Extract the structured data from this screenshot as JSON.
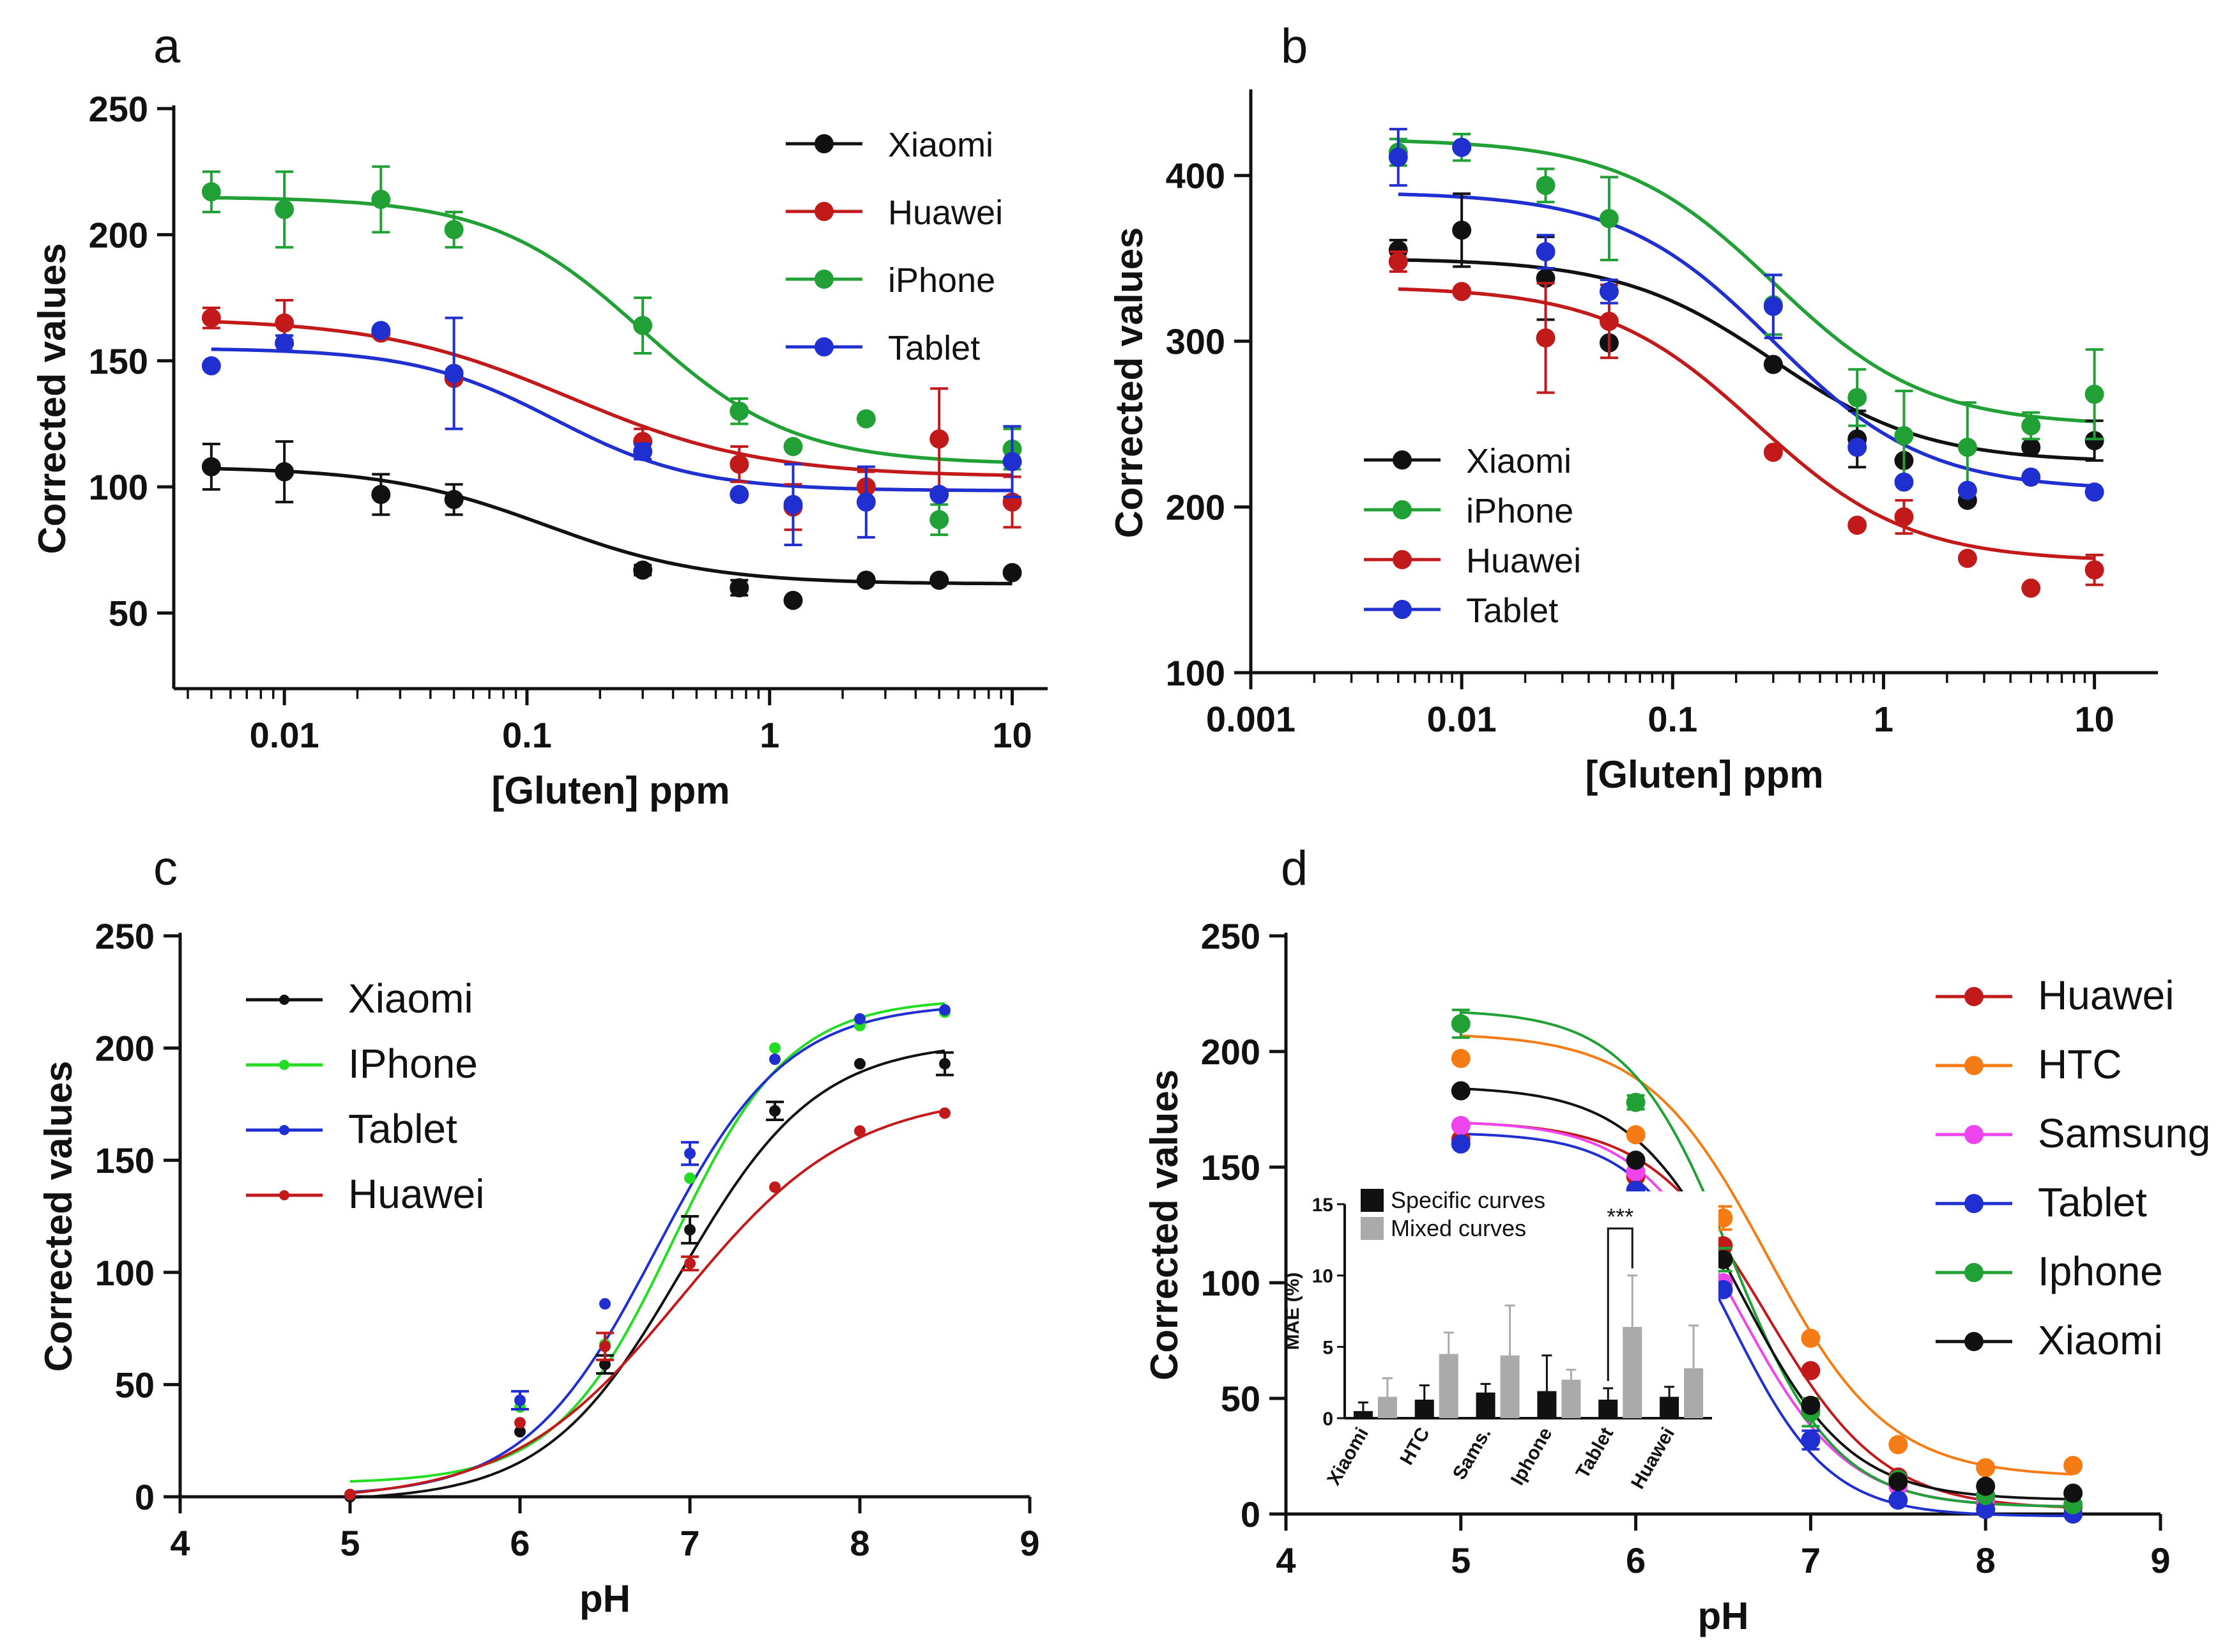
{
  "chart_data": [
    {
      "panel": "a",
      "type": "scatter",
      "x_scale": "log",
      "xlabel": "[Gluten] ppm",
      "ylabel": "Corrected values",
      "xlim": [
        0.0035,
        14
      ],
      "ylim": [
        20,
        250
      ],
      "xticks": [
        0.01,
        0.1,
        1,
        10
      ],
      "xtick_labels": [
        "0.01",
        "0.1",
        "1",
        "10"
      ],
      "yticks": [
        50,
        100,
        150,
        200,
        250
      ],
      "legend_position": "top-right",
      "x": [
        0.005,
        0.01,
        0.025,
        0.05,
        0.3,
        0.75,
        1.25,
        2.5,
        5,
        10
      ],
      "series": [
        {
          "name": "Xiaomi",
          "color": "#111111",
          "values": [
            108,
            106,
            97,
            95,
            67,
            60,
            55,
            63,
            63,
            66
          ],
          "errors": [
            9,
            12,
            8,
            6,
            2,
            3,
            0,
            0,
            0,
            0
          ],
          "fit": {
            "top": 108,
            "bottom": 61.5,
            "ec50": 0.12,
            "hill": 1.3
          }
        },
        {
          "name": "Huawei",
          "color": "#c21a1a",
          "values": [
            167,
            165,
            161,
            143,
            118,
            109,
            92,
            100,
            119,
            94
          ],
          "errors": [
            4,
            9,
            0,
            0,
            5,
            7,
            9,
            6,
            20,
            10
          ],
          "fit": {
            "top": 167,
            "bottom": 104,
            "ec50": 0.15,
            "hill": 1.1
          }
        },
        {
          "name": "iPhone",
          "color": "#21a035",
          "values": [
            217,
            210,
            214,
            202,
            164,
            130,
            116,
            127,
            87,
            115
          ],
          "errors": [
            8,
            15,
            13,
            7,
            11,
            5,
            0,
            0,
            6,
            8
          ],
          "fit": {
            "top": 215,
            "bottom": 109,
            "ec50": 0.3,
            "hill": 1.4
          }
        },
        {
          "name": "Tablet",
          "color": "#1f2fd0",
          "values": [
            148,
            157,
            162,
            145,
            114,
            97,
            93,
            94,
            97,
            110
          ],
          "errors": [
            0,
            3,
            0,
            22,
            3,
            0,
            16,
            14,
            0,
            14
          ],
          "fit": {
            "top": 155,
            "bottom": 98.5,
            "ec50": 0.13,
            "hill": 1.5
          }
        }
      ]
    },
    {
      "panel": "b",
      "type": "scatter",
      "x_scale": "log",
      "xlabel": "[Gluten] ppm",
      "ylabel": "Corrected values",
      "xlim": [
        0.001,
        20
      ],
      "ylim": [
        100,
        450
      ],
      "xticks": [
        0.001,
        0.01,
        0.1,
        1,
        10
      ],
      "xtick_labels": [
        "0.001",
        "0.01",
        "0.1",
        "1",
        "10"
      ],
      "yticks": [
        100,
        200,
        300,
        400
      ],
      "legend_position": "middle-left",
      "x": [
        0.005,
        0.01,
        0.025,
        0.05,
        0.3,
        0.75,
        1.25,
        2.5,
        5,
        10
      ],
      "series": [
        {
          "name": "Xiaomi",
          "color": "#111111",
          "values": [
            355,
            367,
            338,
            299,
            286,
            241,
            228,
            204,
            236,
            240
          ],
          "errors": [
            6,
            22,
            25,
            0,
            0,
            17,
            0,
            0,
            0,
            12
          ],
          "fit": {
            "top": 350,
            "bottom": 227,
            "ec50": 0.3,
            "hill": 1.2
          }
        },
        {
          "name": "iPhone",
          "color": "#21a035",
          "values": [
            414,
            417,
            394,
            374,
            322,
            266,
            243,
            236,
            249,
            268
          ],
          "errors": [
            8,
            8,
            10,
            25,
            18,
            17,
            27,
            27,
            8,
            27
          ],
          "fit": {
            "top": 422,
            "bottom": 249,
            "ec50": 0.3,
            "hill": 1.2
          }
        },
        {
          "name": "Huawei",
          "color": "#c21a1a",
          "values": [
            348,
            330,
            302,
            312,
            233,
            189,
            194,
            169,
            151,
            162
          ],
          "errors": [
            6,
            0,
            33,
            22,
            0,
            0,
            10,
            0,
            0,
            9
          ],
          "fit": {
            "top": 333,
            "bottom": 167,
            "ec50": 0.25,
            "hill": 1.2
          }
        },
        {
          "name": "Tablet",
          "color": "#1f2fd0",
          "values": [
            411,
            417,
            354,
            330,
            321,
            236,
            215,
            210,
            218,
            209
          ],
          "errors": [
            17,
            0,
            10,
            7,
            19,
            0,
            0,
            0,
            0,
            0
          ],
          "fit": {
            "top": 390,
            "bottom": 210,
            "ec50": 0.3,
            "hill": 1.2
          }
        }
      ]
    },
    {
      "panel": "c",
      "type": "line",
      "xlabel": "pH",
      "ylabel": "Corrected values",
      "xlim": [
        4,
        9
      ],
      "ylim": [
        0,
        250
      ],
      "xticks": [
        4,
        5,
        6,
        7,
        8,
        9
      ],
      "yticks": [
        0,
        50,
        100,
        150,
        200,
        250
      ],
      "legend_position": "top-left",
      "x": [
        5,
        6,
        6.5,
        7,
        7.5,
        8,
        8.5
      ],
      "series": [
        {
          "name": "Xiaomi",
          "color": "#111111",
          "values": [
            0,
            29,
            59,
            119,
            172,
            193,
            193
          ],
          "errors": [
            0,
            0,
            4,
            6,
            4,
            0,
            5
          ],
          "fit": {
            "bottom": -2,
            "top": 203,
            "x50": 6.95,
            "k": 2.5
          }
        },
        {
          "name": "IPhone",
          "color": "#22dd22",
          "values": [
            1,
            40,
            68,
            142,
            200,
            210,
            216
          ],
          "errors": [
            0,
            0,
            0,
            0,
            0,
            0,
            0
          ],
          "fit": {
            "bottom": 6,
            "top": 222,
            "x50": 6.9,
            "k": 2.9
          }
        },
        {
          "name": "Tablet",
          "color": "#1f2fd0",
          "values": [
            1,
            43,
            86,
            153,
            195,
            213,
            217
          ],
          "errors": [
            0,
            4,
            0,
            5,
            0,
            0,
            0
          ],
          "fit": {
            "bottom": 0,
            "top": 220,
            "x50": 6.8,
            "k": 2.6
          }
        },
        {
          "name": "Huawei",
          "color": "#c21a1a",
          "values": [
            1,
            33,
            67,
            104,
            138,
            163,
            171
          ],
          "errors": [
            0,
            0,
            6,
            3,
            0,
            0,
            0
          ],
          "fit": {
            "bottom": -2,
            "top": 180,
            "x50": 6.95,
            "k": 2.0
          }
        }
      ]
    },
    {
      "panel": "d",
      "type": "line",
      "xlabel": "pH",
      "ylabel": "Corrected values",
      "xlim": [
        4,
        9
      ],
      "ylim": [
        0,
        250
      ],
      "xticks": [
        4,
        5,
        6,
        7,
        8,
        9
      ],
      "yticks": [
        0,
        50,
        100,
        150,
        200,
        250
      ],
      "legend_position": "top-right",
      "x": [
        5,
        6,
        6.5,
        7,
        7.5,
        8,
        8.5
      ],
      "series": [
        {
          "name": "Huawei",
          "color": "#c21a1a",
          "values": [
            162,
            146,
            116,
            62,
            16,
            5,
            3
          ],
          "errors": [
            0,
            0,
            0,
            0,
            0,
            0,
            0
          ],
          "fit": {
            "bottom": 2,
            "top": 170,
            "x50": 6.75,
            "k": 3.0
          }
        },
        {
          "name": "HTC",
          "color": "#f57c14",
          "values": [
            197,
            164,
            128,
            76,
            30,
            20,
            21
          ],
          "errors": [
            0,
            0,
            5,
            0,
            0,
            0,
            0
          ],
          "fit": {
            "bottom": 16,
            "top": 208,
            "x50": 6.75,
            "k": 2.9
          }
        },
        {
          "name": "Samsung",
          "color": "#ee44ee",
          "values": [
            168,
            148,
            100,
            45,
            12,
            6,
            4
          ],
          "errors": [
            0,
            0,
            0,
            0,
            0,
            0,
            0
          ],
          "fit": {
            "bottom": 3,
            "top": 170,
            "x50": 6.6,
            "k": 3.3
          }
        },
        {
          "name": "Tablet",
          "color": "#1f2fd0",
          "values": [
            160,
            140,
            97,
            32,
            6,
            2,
            0
          ],
          "errors": [
            0,
            0,
            0,
            4,
            0,
            0,
            0
          ],
          "fit": {
            "bottom": -1,
            "top": 165,
            "x50": 6.55,
            "k": 3.6
          }
        },
        {
          "name": "Iphone",
          "color": "#21a035",
          "values": [
            212,
            178,
            110,
            44,
            15,
            8,
            4
          ],
          "errors": [
            6,
            3,
            5,
            6,
            0,
            0,
            0
          ],
          "fit": {
            "bottom": 3,
            "top": 218,
            "x50": 6.55,
            "k": 3.4
          }
        },
        {
          "name": "Xiaomi",
          "color": "#111111",
          "values": [
            183,
            153,
            110,
            47,
            14,
            12,
            9
          ],
          "errors": [
            0,
            0,
            0,
            0,
            0,
            0,
            0
          ],
          "fit": {
            "bottom": 6,
            "top": 185,
            "x50": 6.6,
            "k": 3.2
          }
        }
      ],
      "inset": {
        "type": "bar",
        "ylabel": "MAE (%)",
        "ylim": [
          0,
          15
        ],
        "yticks": [
          0,
          5,
          10,
          15
        ],
        "categories": [
          "Xiaomi",
          "HTC",
          "Sams.",
          "Iphone",
          "Tablet",
          "Huawei"
        ],
        "series": [
          {
            "name": "Specific curves",
            "color": "#111111",
            "values": [
              0.5,
              1.3,
              1.8,
              1.9,
              1.3,
              1.5
            ],
            "errors": [
              0.6,
              1.0,
              0.6,
              2.5,
              0.8,
              0.7
            ]
          },
          {
            "name": "Mixed curves",
            "color": "#aaaaaa",
            "values": [
              1.5,
              4.5,
              4.4,
              2.7,
              6.4,
              3.5
            ],
            "errors": [
              1.3,
              1.5,
              3.5,
              0.7,
              3.6,
              3.0
            ]
          }
        ],
        "annotation": "***"
      }
    }
  ]
}
